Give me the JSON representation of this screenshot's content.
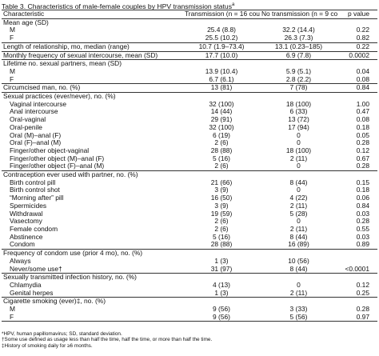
{
  "title": "Table 3. Characteristics of male-female couples by HPV transmission status",
  "title_sup": "a",
  "columns": [
    "Characteristic",
    "Transmission (n = 16 couples)",
    "No transmission (n = 9 couples)",
    "p value"
  ],
  "rows": [
    {
      "label": "Mean age (SD)",
      "t": "",
      "n": "",
      "p": "",
      "indent": 0,
      "sec": true
    },
    {
      "label": "M",
      "t": "25.4 (8.8)",
      "n": "32.2 (14.4)",
      "p": "0.22",
      "indent": 1
    },
    {
      "label": "F",
      "t": "25.5 (10.2)",
      "n": "26.3 (7.3)",
      "p": "0.82",
      "indent": 1
    },
    {
      "label": "Length of relationship, mo, median (range)",
      "t": "10.7 (1.9–73.4)",
      "n": "13.1 (0.23–185)",
      "p": "0.22",
      "indent": 0,
      "sec": true
    },
    {
      "label": "Monthly frequency of sexual intercourse, mean (SD)",
      "t": "17.7 (10.0)",
      "n": "6.9 (7.8)",
      "p": "0.0002",
      "indent": 0,
      "sec": true
    },
    {
      "label": "Lifetime no. sexual partners, mean (SD)",
      "t": "",
      "n": "",
      "p": "",
      "indent": 0,
      "sec": true
    },
    {
      "label": "M",
      "t": "13.9 (10.4)",
      "n": "5.9 (5.1)",
      "p": "0.04",
      "indent": 1
    },
    {
      "label": "F",
      "t": "6.7 (6.1)",
      "n": "2.8 (2.2)",
      "p": "0.08",
      "indent": 1
    },
    {
      "label": "Circumcised man, no. (%)",
      "t": "13 (81)",
      "n": "7 (78)",
      "p": "0.84",
      "indent": 0,
      "sec": true
    },
    {
      "label": "Sexual practices (ever/never), no. (%)",
      "t": "",
      "n": "",
      "p": "",
      "indent": 0,
      "sec": true
    },
    {
      "label": "Vaginal intercourse",
      "t": "32 (100)",
      "n": "18 (100)",
      "p": "1.00",
      "indent": 1
    },
    {
      "label": "Anal intercourse",
      "t": "14 (44)",
      "n": "6 (33)",
      "p": "0.47",
      "indent": 1
    },
    {
      "label": "Oral-vaginal",
      "t": "29 (91)",
      "n": "13 (72)",
      "p": "0.08",
      "indent": 1
    },
    {
      "label": "Oral-penile",
      "t": "32 (100)",
      "n": "17 (94)",
      "p": "0.18",
      "indent": 1
    },
    {
      "label": "Oral (M)–anal (F)",
      "t": "6 (19)",
      "n": "0",
      "p": "0.05",
      "indent": 1
    },
    {
      "label": "Oral (F)–anal (M)",
      "t": "2 (6)",
      "n": "0",
      "p": "0.28",
      "indent": 1
    },
    {
      "label": "Finger/other object-vaginal",
      "t": "28 (88)",
      "n": "18 (100)",
      "p": "0.12",
      "indent": 1
    },
    {
      "label": "Finger/other object (M)–anal (F)",
      "t": "5 (16)",
      "n": "2 (11)",
      "p": "0.67",
      "indent": 1
    },
    {
      "label": "Finger/other object (F)–anal (M)",
      "t": "2 (6)",
      "n": "0",
      "p": "0.28",
      "indent": 1
    },
    {
      "label": "Contraception ever used with partner, no. (%)",
      "t": "",
      "n": "",
      "p": "",
      "indent": 0,
      "sec": true
    },
    {
      "label": "Birth control pill",
      "t": "21 (66)",
      "n": "8 (44)",
      "p": "0.15",
      "indent": 1
    },
    {
      "label": "Birth control shot",
      "t": "3 (9)",
      "n": "0",
      "p": "0.18",
      "indent": 1
    },
    {
      "label": "“Morning after” pill",
      "t": "16 (50)",
      "n": "4 (22)",
      "p": "0.06",
      "indent": 1
    },
    {
      "label": "Spermicides",
      "t": "3 (9)",
      "n": "2 (11)",
      "p": "0.84",
      "indent": 1
    },
    {
      "label": "Withdrawal",
      "t": "19 (59)",
      "n": "5 (28)",
      "p": "0.03",
      "indent": 1
    },
    {
      "label": "Vasectomy",
      "t": "2 (6)",
      "n": "0",
      "p": "0.28",
      "indent": 1
    },
    {
      "label": "Female condom",
      "t": "2 (6)",
      "n": "2 (11)",
      "p": "0.55",
      "indent": 1
    },
    {
      "label": "Abstinence",
      "t": "5 (16)",
      "n": "8 (44)",
      "p": "0.03",
      "indent": 1
    },
    {
      "label": "Condom",
      "t": "28 (88)",
      "n": "16 (89)",
      "p": "0.89",
      "indent": 1
    },
    {
      "label": "Frequency of condom use (prior 4 mo), no. (%)",
      "t": "",
      "n": "",
      "p": "",
      "indent": 0,
      "sec": true
    },
    {
      "label": "Always",
      "t": "1 (3)",
      "n": "10 (56)",
      "p": "",
      "indent": 1
    },
    {
      "label": "Never/some use†",
      "t": "31 (97)",
      "n": "8 (44)",
      "p": "<0.0001",
      "indent": 1
    },
    {
      "label": "Sexually transmitted infection history, no. (%)",
      "t": "",
      "n": "",
      "p": "",
      "indent": 0,
      "sec": true
    },
    {
      "label": "Chlamydia",
      "t": "4 (13)",
      "n": "0",
      "p": "0.12",
      "indent": 1
    },
    {
      "label": "Genital herpes",
      "t": "1 (3)",
      "n": "2 (11)",
      "p": "0.25",
      "indent": 1
    },
    {
      "label": "Cigarette smoking (ever)‡, no. (%)",
      "t": "",
      "n": "",
      "p": "",
      "indent": 0,
      "sec": true
    },
    {
      "label": "M",
      "t": "9 (56)",
      "n": "3 (33)",
      "p": "0.28",
      "indent": 1
    },
    {
      "label": "F",
      "t": "9 (56)",
      "n": "5 (56)",
      "p": "0.97",
      "indent": 1
    }
  ],
  "footnotes": [
    "*HPV, human papillomavirus; SD, standard deviation.",
    "†Some use defined as usage less than half the time, half the time, or more than half the time.",
    "‡History of smoking daily for ≥6 months."
  ]
}
